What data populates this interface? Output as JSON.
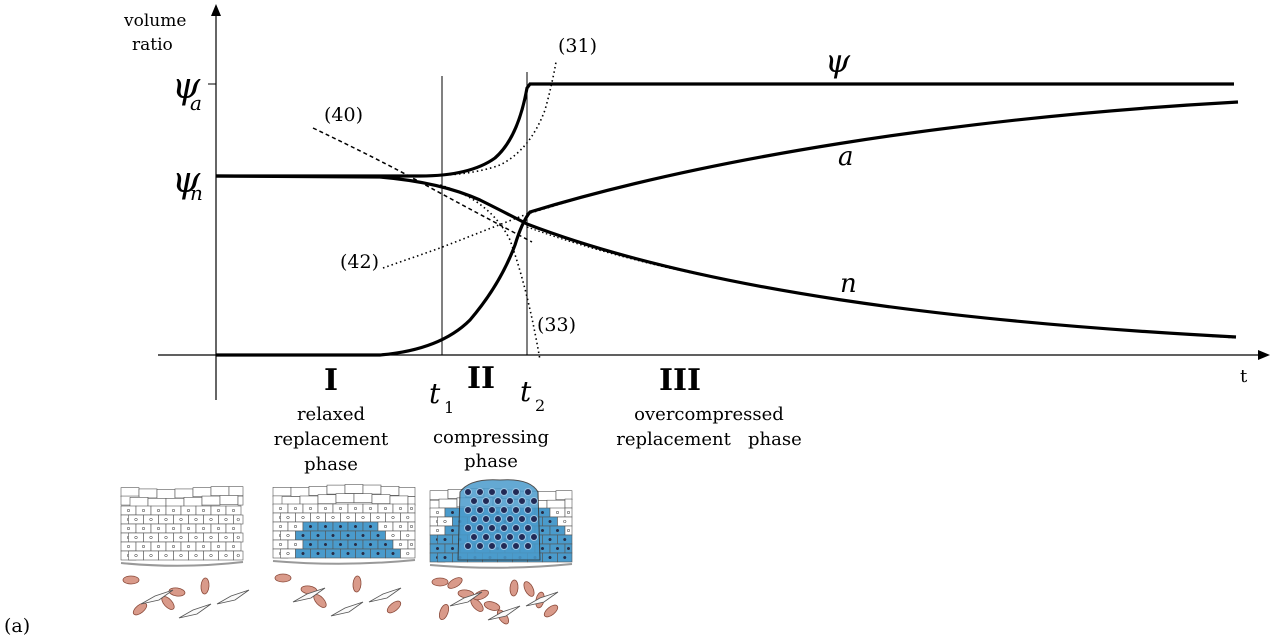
{
  "y_axis_label": [
    "volume",
    "ratio"
  ],
  "x_axis_label": "t",
  "levels": {
    "psi_a": "ψ",
    "psi_a_sub": "a",
    "psi_n": "ψ",
    "psi_n_sub": "n"
  },
  "times": {
    "t1": "t",
    "t1_sub": "1",
    "t2": "t",
    "t2_sub": "2"
  },
  "curve_labels": {
    "psi": "ψ",
    "a": "a",
    "n": "n"
  },
  "equation_refs": {
    "eq31": "(31)",
    "eq33": "(33)",
    "eq40": "(40)",
    "eq42": "(42)"
  },
  "phases": [
    {
      "numeral": "I",
      "lines": [
        "relaxed",
        "replacement",
        "phase"
      ]
    },
    {
      "numeral": "II",
      "lines": [
        "compressing",
        "phase"
      ]
    },
    {
      "numeral": "III",
      "lines": [
        "overcompressed",
        "replacement   phase"
      ]
    }
  ],
  "panel_label": "(a)",
  "colors": {
    "cells_blue": "#4a9bcc",
    "cells_outline": "#555555",
    "stroma_pink": "#d99a8a",
    "nucleus_dark": "#222a55"
  }
}
